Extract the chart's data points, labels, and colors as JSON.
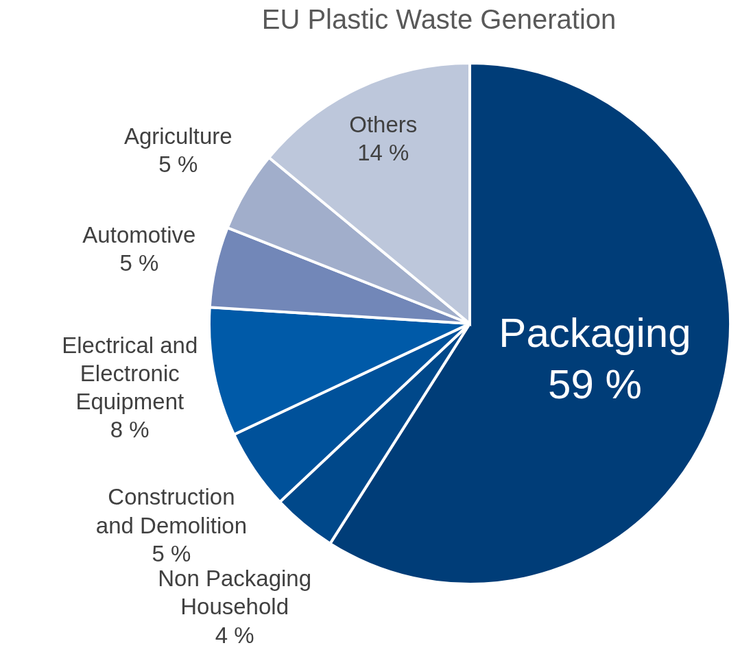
{
  "chart_data": {
    "type": "pie",
    "title": "EU Plastic Waste Generation",
    "categories": [
      "Packaging",
      "Non Packaging Household",
      "Construction and Demolition",
      "Electrical and Electronic Equipment",
      "Automotive",
      "Agriculture",
      "Others"
    ],
    "values": [
      59,
      4,
      5,
      8,
      5,
      5,
      14
    ],
    "value_labels": [
      "59 %",
      "4 %",
      "5 %",
      "8 %",
      "5 %",
      "5 %",
      "14 %"
    ],
    "colors": [
      "#003d78",
      "#00488a",
      "#00519a",
      "#005aa8",
      "#7287b8",
      "#a1aecb",
      "#bdc7db"
    ]
  }
}
